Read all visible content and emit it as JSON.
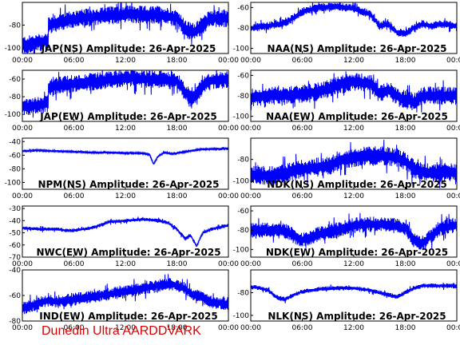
{
  "footer": "Dunedin Ultra AARDDVARK",
  "style": {
    "trace_color": "#0000ff",
    "axis_color": "#000000",
    "footer_color": "#dd0000",
    "grid": false
  },
  "chart_data": [
    {
      "type": "line",
      "title": "JAP(NS) Amplitude: 26-Apr-2025",
      "x_ticks": [
        "00:00",
        "06:00",
        "12:00",
        "18:00",
        "00:00"
      ],
      "y_ticks": [
        "-80",
        "-100"
      ],
      "ylim": [
        -105,
        -60
      ],
      "xlim": [
        0,
        24
      ],
      "trace": {
        "x": [
          0,
          3,
          3.01,
          5,
          8,
          11,
          12,
          14,
          16,
          18,
          19,
          20,
          21,
          22,
          24
        ],
        "y": [
          -98,
          -94,
          -80,
          -76,
          -73,
          -71,
          -70,
          -71,
          -71,
          -74,
          -84,
          -86,
          -80,
          -74,
          -74
        ]
      },
      "noise": 8
    },
    {
      "type": "line",
      "title": "NAA(NS) Amplitude: 26-Apr-2025",
      "x_ticks": [
        "00:00",
        "06:00",
        "12:00",
        "18:00",
        "00:00"
      ],
      "y_ticks": [
        "-60",
        "-80",
        "-100"
      ],
      "ylim": [
        -105,
        -55
      ],
      "xlim": [
        0,
        24
      ],
      "trace": {
        "x": [
          0,
          2,
          4,
          5,
          6,
          8,
          10,
          12,
          14,
          15,
          16,
          17,
          18,
          19,
          20,
          21,
          22,
          24
        ],
        "y": [
          -80,
          -78,
          -75,
          -70,
          -64,
          -60,
          -59,
          -61,
          -67,
          -78,
          -76,
          -84,
          -86,
          -80,
          -76,
          -78,
          -76,
          -78
        ]
      },
      "noise": 4
    },
    {
      "type": "line",
      "title": "JAP(EW) Amplitude: 26-Apr-2025",
      "x_ticks": [
        "00:00",
        "06:00",
        "12:00",
        "18:00",
        "00:00"
      ],
      "y_ticks": [
        "-60",
        "-80",
        "-100"
      ],
      "ylim": [
        -108,
        -50
      ],
      "xlim": [
        0,
        24
      ],
      "trace": {
        "x": [
          0,
          3,
          3.01,
          5,
          8,
          11,
          12,
          14,
          16,
          18,
          19,
          20,
          21,
          22,
          24
        ],
        "y": [
          -92,
          -88,
          -70,
          -66,
          -63,
          -60,
          -58,
          -60,
          -60,
          -62,
          -76,
          -80,
          -68,
          -62,
          -60
        ]
      },
      "noise": 10
    },
    {
      "type": "line",
      "title": "NAA(EW) Amplitude: 26-Apr-2025",
      "x_ticks": [
        "00:00",
        "06:00",
        "12:00",
        "18:00",
        "00:00"
      ],
      "y_ticks": [
        "-60",
        "-80",
        "-100"
      ],
      "ylim": [
        -105,
        -55
      ],
      "xlim": [
        0,
        24
      ],
      "trace": {
        "x": [
          0,
          2,
          4,
          6,
          8,
          10,
          12,
          14,
          15,
          16,
          17,
          18,
          19,
          20,
          22,
          24
        ],
        "y": [
          -82,
          -80,
          -80,
          -78,
          -76,
          -70,
          -66,
          -68,
          -78,
          -74,
          -80,
          -84,
          -86,
          -80,
          -80,
          -80
        ]
      },
      "noise": 9
    },
    {
      "type": "line",
      "title": "NPM(NS) Amplitude: 26-Apr-2025",
      "x_ticks": [
        "00:00",
        "06:00",
        "12:00",
        "18:00",
        "00:00"
      ],
      "y_ticks": [
        "-40",
        "-60",
        "-80",
        "-100"
      ],
      "ylim": [
        -110,
        -35
      ],
      "xlim": [
        0,
        24
      ],
      "trace": {
        "x": [
          0,
          2,
          4,
          6,
          8,
          10,
          12,
          14,
          14.8,
          15.3,
          15.8,
          16.5,
          17.5,
          19,
          21,
          22,
          24
        ],
        "y": [
          -54,
          -53,
          -54,
          -55,
          -56,
          -56,
          -57,
          -57,
          -59,
          -73,
          -62,
          -56,
          -58,
          -55,
          -51,
          -51,
          -50
        ]
      },
      "noise": 1.5
    },
    {
      "type": "line",
      "title": "NDK(NS) Amplitude: 26-Apr-2025",
      "x_ticks": [
        "00:00",
        "06:00",
        "12:00",
        "18:00",
        "00:00"
      ],
      "y_ticks": [
        "-80",
        "-100"
      ],
      "ylim": [
        -108,
        -60
      ],
      "xlim": [
        0,
        24
      ],
      "trace": {
        "x": [
          0,
          3,
          5,
          7,
          9,
          11,
          13,
          15,
          17,
          18,
          19,
          20,
          22,
          24
        ],
        "y": [
          -95,
          -95,
          -91,
          -88,
          -86,
          -80,
          -77,
          -76,
          -78,
          -82,
          -89,
          -92,
          -93,
          -92
        ]
      },
      "noise": 9
    },
    {
      "type": "line",
      "title": "NWC(EW) Amplitude: 26-Apr-2025",
      "x_ticks": [
        "00:00",
        "06:00",
        "12:00",
        "18:00",
        "00:00"
      ],
      "y_ticks": [
        "-30",
        "-40",
        "-50",
        "-60",
        "-70"
      ],
      "ylim": [
        -70,
        -28
      ],
      "xlim": [
        0,
        24
      ],
      "trace": {
        "x": [
          0,
          2,
          4,
          5,
          6,
          8,
          9,
          10,
          12,
          14,
          16,
          17,
          18,
          19,
          19.6,
          20.3,
          21,
          22,
          24
        ],
        "y": [
          -46,
          -47,
          -47,
          -48,
          -48,
          -46,
          -44,
          -41,
          -40,
          -39,
          -40,
          -42,
          -47,
          -55,
          -52,
          -61,
          -50,
          -47,
          -44
        ]
      },
      "noise": 1.5
    },
    {
      "type": "line",
      "title": "NDK(EW) Amplitude: 26-Apr-2025",
      "x_ticks": [
        "00:00",
        "06:00",
        "12:00",
        "18:00",
        "00:00"
      ],
      "y_ticks": [
        "-60",
        "-80",
        "-100"
      ],
      "ylim": [
        -108,
        -55
      ],
      "xlim": [
        0,
        24
      ],
      "trace": {
        "x": [
          0,
          2,
          4,
          5,
          6,
          7,
          8,
          10,
          12,
          14,
          16,
          18,
          19,
          20,
          21,
          22,
          24
        ],
        "y": [
          -80,
          -80,
          -81,
          -86,
          -90,
          -88,
          -84,
          -80,
          -75,
          -74,
          -74,
          -78,
          -90,
          -94,
          -86,
          -78,
          -75
        ]
      },
      "noise": 8
    },
    {
      "type": "line",
      "title": "IND(EW) Amplitude: 26-Apr-2025",
      "x_ticks": [
        "00:00",
        "06:00",
        "12:00",
        "18:00",
        "00:00"
      ],
      "y_ticks": [
        "-40",
        "-60",
        "-80"
      ],
      "ylim": [
        -80,
        -40
      ],
      "xlim": [
        0,
        24
      ],
      "trace": {
        "x": [
          0,
          2,
          3,
          4,
          6,
          8,
          10,
          12,
          14,
          16,
          17,
          18,
          19,
          20,
          21,
          22,
          24
        ],
        "y": [
          -70,
          -66,
          -64,
          -65,
          -63,
          -61,
          -59,
          -57,
          -55,
          -52,
          -51,
          -52,
          -55,
          -60,
          -62,
          -65,
          -67
        ]
      },
      "noise": 5
    },
    {
      "type": "line",
      "title": "NLK(NS) Amplitude: 26-Apr-2025",
      "x_ticks": [
        "00:00",
        "06:00",
        "12:00",
        "18:00",
        "00:00"
      ],
      "y_ticks": [
        "-80",
        "-100"
      ],
      "ylim": [
        -105,
        -60
      ],
      "xlim": [
        0,
        24
      ],
      "trace": {
        "x": [
          0,
          1,
          2,
          3,
          4,
          5,
          6,
          8,
          10,
          12,
          14,
          16,
          17,
          18,
          19,
          20,
          22,
          24
        ],
        "y": [
          -75,
          -76,
          -78,
          -84,
          -86,
          -82,
          -79,
          -77,
          -76,
          -76,
          -78,
          -82,
          -84,
          -80,
          -76,
          -74,
          -74,
          -74
        ]
      },
      "noise": 2
    }
  ]
}
